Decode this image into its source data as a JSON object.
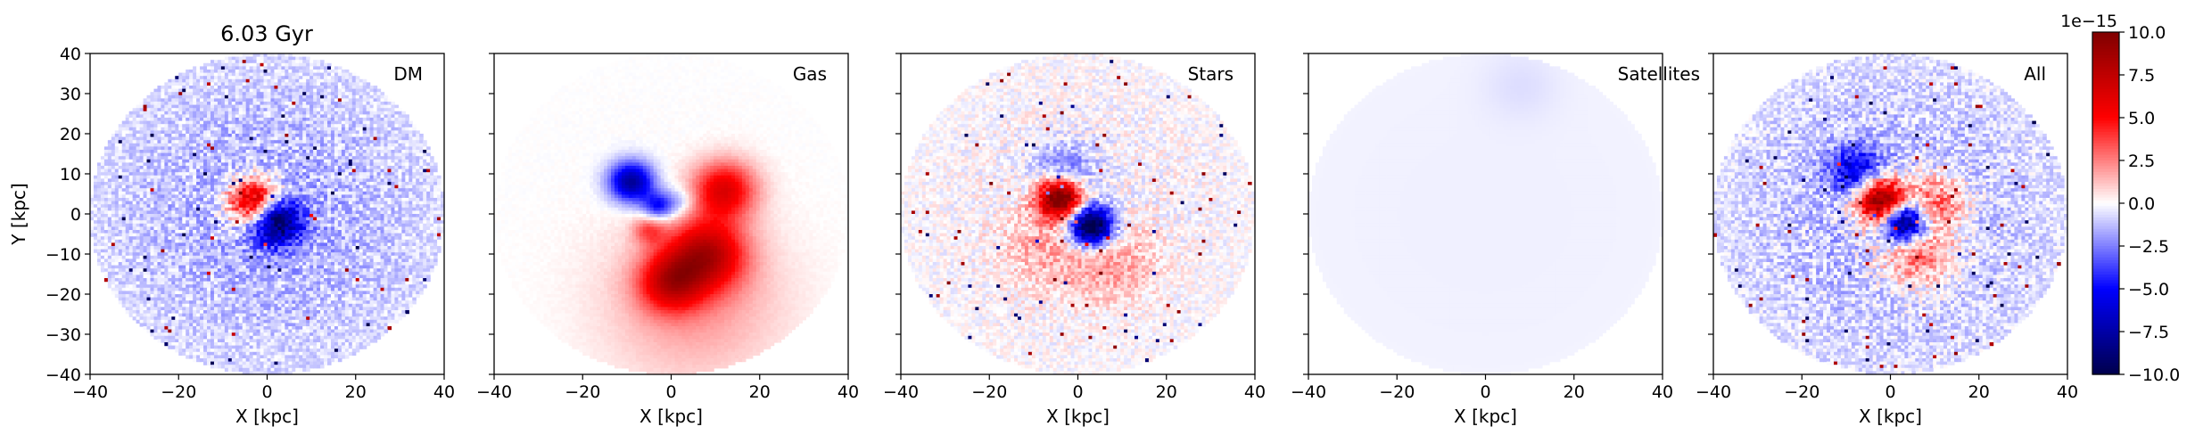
{
  "figure": {
    "time_label": "6.03 Gyr",
    "colormap": "seismic",
    "colors": {
      "neg_max": "#00004c",
      "neg_mid": "#0000ff",
      "zero": "#ffffff",
      "pos_mid": "#ff0000",
      "pos_max": "#800000"
    }
  },
  "chart_data": [
    {
      "type": "heatmap",
      "panel_label": "DM",
      "xlabel": "X [kpc]",
      "ylabel": "Y [kpc]",
      "xlim": [
        -40,
        40
      ],
      "ylim": [
        -40,
        40
      ],
      "xticks": [
        "−40",
        "−20",
        "0",
        "20",
        "40"
      ],
      "yticks": [
        "40",
        "30",
        "20",
        "10",
        "0",
        "−10",
        "−20",
        "−30",
        "−40"
      ],
      "field_extent_kpc": 40,
      "features": [
        {
          "x": -3,
          "y": 3,
          "sigma": 4,
          "amp": 9
        },
        {
          "x": 2,
          "y": -2,
          "sigma": 4,
          "amp": -9
        },
        {
          "x": 0,
          "y": 0,
          "sigma": 30,
          "amp": -1.6
        }
      ],
      "noise": 1.8
    },
    {
      "type": "heatmap",
      "panel_label": "Gas",
      "xlabel": "X [kpc]",
      "ylabel": "",
      "xlim": [
        -40,
        40
      ],
      "ylim": [
        -40,
        40
      ],
      "xticks": [
        "−40",
        "−20",
        "0",
        "20",
        "40"
      ],
      "field_extent_kpc": 40,
      "features": [
        {
          "x": -9,
          "y": 8,
          "sigma": 3.5,
          "amp": -8
        },
        {
          "x": -3,
          "y": 2,
          "sigma": 2.5,
          "amp": -5
        },
        {
          "x": 12,
          "y": 6,
          "sigma": 5,
          "amp": 6
        },
        {
          "x": 8,
          "y": -10,
          "sigma": 6,
          "amp": 7
        },
        {
          "x": 0,
          "y": -17,
          "sigma": 5,
          "amp": 6
        },
        {
          "x": 5,
          "y": -22,
          "sigma": 14,
          "amp": 2
        },
        {
          "x": -5,
          "y": -4,
          "sigma": 2.5,
          "amp": 3
        },
        {
          "x": 2,
          "y": 3,
          "sigma": 2.5,
          "amp": -2
        }
      ],
      "noise": 0.2
    },
    {
      "type": "heatmap",
      "panel_label": "Stars",
      "xlabel": "X [kpc]",
      "ylabel": "",
      "xlim": [
        -40,
        40
      ],
      "ylim": [
        -40,
        40
      ],
      "xticks": [
        "−40",
        "−20",
        "0",
        "20",
        "40"
      ],
      "field_extent_kpc": 40,
      "features": [
        {
          "x": -4,
          "y": 4,
          "sigma": 3.5,
          "amp": 12
        },
        {
          "x": 3,
          "y": -3,
          "sigma": 3.5,
          "amp": -12
        },
        {
          "x": -3,
          "y": 10,
          "sigma": 5,
          "amp": -3
        },
        {
          "x": 7,
          "y": -12,
          "sigma": 7,
          "amp": 2
        },
        {
          "x": -8,
          "y": -8,
          "sigma": 7,
          "amp": 1.5
        }
      ],
      "noise": 1.5
    },
    {
      "type": "heatmap",
      "panel_label": "Satellites",
      "xlabel": "X [kpc]",
      "ylabel": "",
      "xlim": [
        -40,
        40
      ],
      "ylim": [
        -40,
        40
      ],
      "xticks": [
        "−40",
        "−20",
        "0",
        "20",
        "40"
      ],
      "field_extent_kpc": 40,
      "features": [
        {
          "x": 0,
          "y": 0,
          "sigma": 60,
          "amp": -0.3
        },
        {
          "x": 8,
          "y": 32,
          "sigma": 6,
          "amp": -0.4
        }
      ],
      "noise": 0.0
    },
    {
      "type": "heatmap",
      "panel_label": "All",
      "xlabel": "X [kpc]",
      "ylabel": "",
      "xlim": [
        -40,
        40
      ],
      "ylim": [
        -40,
        40
      ],
      "xticks": [
        "−40",
        "−20",
        "0",
        "20",
        "40"
      ],
      "field_extent_kpc": 40,
      "features": [
        {
          "x": -2,
          "y": 3,
          "sigma": 4,
          "amp": 11
        },
        {
          "x": 3,
          "y": -2,
          "sigma": 3.5,
          "amp": -11
        },
        {
          "x": -8,
          "y": 11,
          "sigma": 4,
          "amp": -5
        },
        {
          "x": 10,
          "y": 3,
          "sigma": 5,
          "amp": 4
        },
        {
          "x": 6,
          "y": -10,
          "sigma": 6,
          "amp": 4
        },
        {
          "x": 0,
          "y": 0,
          "sigma": 30,
          "amp": -1.4
        }
      ],
      "noise": 2.0
    }
  ],
  "colorbar": {
    "min": -10.0,
    "max": 10.0,
    "ticks": [
      "10.0",
      "7.5",
      "5.0",
      "2.5",
      "0.0",
      "−2.5",
      "−5.0",
      "−7.5",
      "−10.0"
    ],
    "scale_label": "1e−15"
  }
}
